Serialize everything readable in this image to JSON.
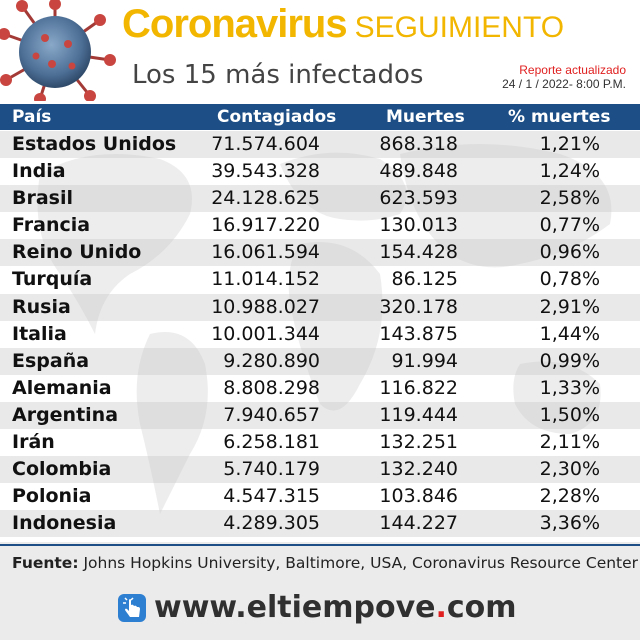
{
  "header": {
    "title_big": "Coronavirus",
    "title_small": "SEGUIMIENTO",
    "subtitle": "Los 15 más infectados",
    "report_label": "Reporte actualizado",
    "report_date": "24 / 1 / 2022-   8:00 P.M."
  },
  "colors": {
    "accent": "#f2b600",
    "header_bar": "#1d4f86",
    "report": "#e02020"
  },
  "chart_data": {
    "type": "table",
    "columns": [
      "País",
      "Contagiados",
      "Muertes",
      "% muertes"
    ],
    "rows": [
      [
        "Estados Unidos",
        "71.574.604",
        "868.318",
        "1,21%"
      ],
      [
        "India",
        "39.543.328",
        "489.848",
        "1,24%"
      ],
      [
        "Brasil",
        "24.128.625",
        "623.593",
        "2,58%"
      ],
      [
        "Francia",
        "16.917.220",
        "130.013",
        "0,77%"
      ],
      [
        "Reino Unido",
        "16.061.594",
        "154.428",
        "0,96%"
      ],
      [
        "Turquía",
        "11.014.152",
        "86.125",
        "0,78%"
      ],
      [
        "Rusia",
        "10.988.027",
        "320.178",
        "2,91%"
      ],
      [
        "Italia",
        "10.001.344",
        "143.875",
        "1,44%"
      ],
      [
        "España",
        "9.280.890",
        "91.994",
        "0,99%"
      ],
      [
        "Alemania",
        "8.808.298",
        "116.822",
        "1,33%"
      ],
      [
        "Argentina",
        "7.940.657",
        "119.444",
        "1,50%"
      ],
      [
        "Irán",
        "6.258.181",
        "132.251",
        "2,11%"
      ],
      [
        "Colombia",
        "5.740.179",
        "132.240",
        "2,30%"
      ],
      [
        "Polonia",
        "4.547.315",
        "103.846",
        "2,28%"
      ],
      [
        "Indonesia",
        "4.289.305",
        "144.227",
        "3,36%"
      ]
    ]
  },
  "footer": {
    "source_label": "Fuente:",
    "source_text": " Johns Hopkins University, Baltimore, USA, Coronavirus Resource Center",
    "brand_www": "www.",
    "brand_name": "eltiempove",
    "brand_tld": "com",
    "brand_dot": "."
  }
}
